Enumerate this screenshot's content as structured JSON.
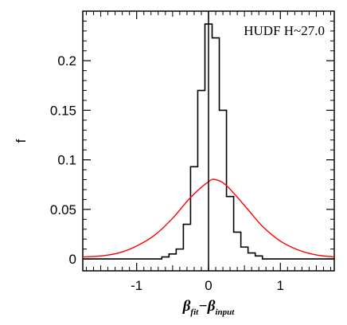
{
  "chart_data": {
    "type": "histogram+line",
    "annotation": "HUDF H~27.0",
    "ylabel": "f",
    "xlabel": {
      "main1": "β",
      "sub1": "fit",
      "op": "−",
      "main2": "β",
      "sub2": "input"
    },
    "xlim": [
      -1.75,
      1.75
    ],
    "ylim": [
      -0.012,
      0.25
    ],
    "xticks": [
      {
        "v": -1,
        "label": "-1"
      },
      {
        "v": 0,
        "label": "0"
      },
      {
        "v": 1,
        "label": "1"
      }
    ],
    "yticks": [
      {
        "v": 0,
        "label": "0"
      },
      {
        "v": 0.05,
        "label": "0.05"
      },
      {
        "v": 0.1,
        "label": "0.1"
      },
      {
        "v": 0.15,
        "label": "0.15"
      },
      {
        "v": 0.2,
        "label": "0.2"
      }
    ],
    "vline_x": 0,
    "series": [
      {
        "style": "step",
        "color": "#000000",
        "bin_edges": [
          -1.75,
          -0.65,
          -0.55,
          -0.45,
          -0.35,
          -0.25,
          -0.15,
          -0.05,
          0.05,
          0.15,
          0.25,
          0.35,
          0.45,
          0.55,
          0.65,
          0.75,
          1.75
        ],
        "values": [
          0.0,
          0.002,
          0.005,
          0.01,
          0.035,
          0.093,
          0.17,
          0.237,
          0.223,
          0.15,
          0.063,
          0.027,
          0.012,
          0.006,
          0.003,
          0.0
        ]
      },
      {
        "style": "line",
        "color": "#ff0000",
        "x": [
          -1.75,
          -1.5,
          -1.25,
          -1.0,
          -0.75,
          -0.5,
          -0.25,
          0.0,
          0.1,
          0.25,
          0.5,
          0.75,
          1.0,
          1.25,
          1.5,
          1.75
        ],
        "y": [
          0.002,
          0.003,
          0.006,
          0.013,
          0.024,
          0.041,
          0.062,
          0.078,
          0.08,
          0.074,
          0.054,
          0.033,
          0.018,
          0.009,
          0.004,
          0.002
        ]
      }
    ]
  }
}
